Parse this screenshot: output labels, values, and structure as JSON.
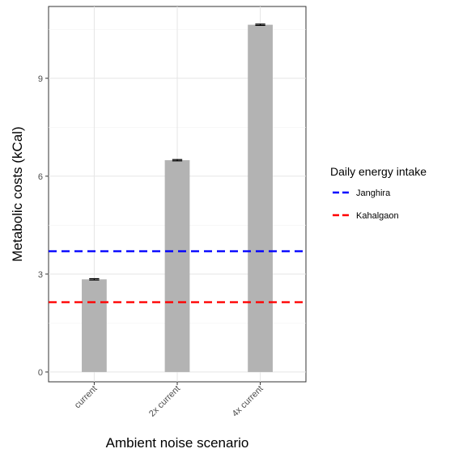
{
  "chart_data": {
    "type": "bar",
    "categories": [
      "current",
      "2x current",
      "4x current"
    ],
    "values": [
      2.84,
      6.49,
      10.64
    ],
    "errors": [
      0.02,
      0.02,
      0.02
    ],
    "xlabel": "Ambient noise scenario",
    "ylabel": "Metabolic costs (kCal)",
    "ylim": [
      -0.3,
      11.2
    ],
    "yticks": [
      0,
      3,
      6,
      9
    ],
    "grid": true,
    "bar_color": "#b3b3b3",
    "hlines": [
      {
        "name": "Janghira",
        "value": 3.7,
        "color": "#0000ff",
        "style": "dashed"
      },
      {
        "name": "Kahalgaon",
        "value": 2.14,
        "color": "#ff0000",
        "style": "dashed"
      }
    ],
    "legend": {
      "title": "Daily energy intake",
      "position": "right",
      "entries": [
        "Janghira",
        "Kahalgaon"
      ]
    }
  }
}
